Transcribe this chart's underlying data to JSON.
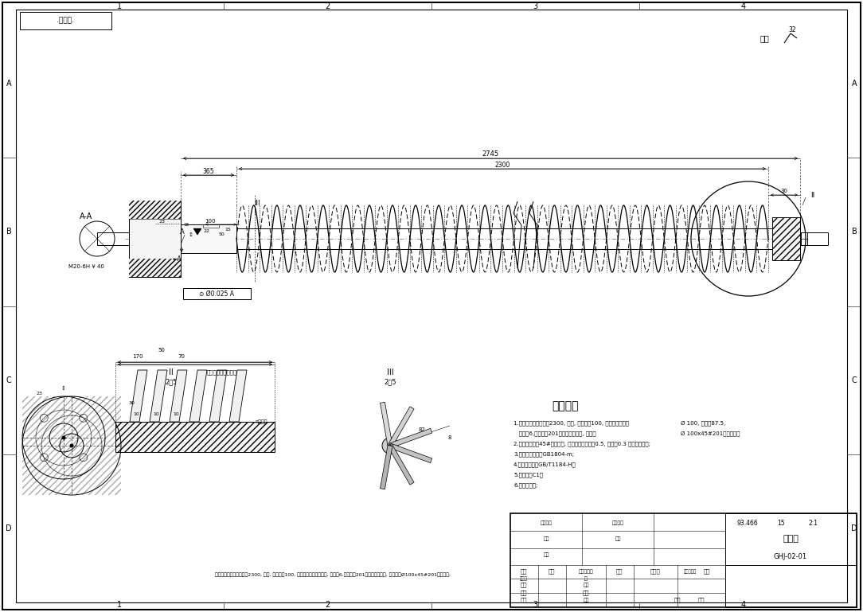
{
  "background_color": "#ffffff",
  "line_color": "#000000",
  "grid_col_labels": [
    "1",
    "2",
    "3",
    "4"
  ],
  "grid_row_labels": [
    "A",
    "B",
    "C",
    "D"
  ],
  "tech_requirements_title": "技术要求",
  "tech_req": [
    "1.螺旋叶片螺旋线长为2300, 右旋, 螺距等于100, 螺旋由螺旋线叠",
    "   层数为6,叶片使用201不锈钢板压成型, 并焊接",
    "2.不锈钢轴使用45#加工而来, 加工后不锈钢精度0.5, 右旋至0.3 工艺参照图纸;",
    "3.未注公差尺寸按GB1804-m;",
    "4.未注形位公差GB/T1184-H；",
    "5.未注倒角C1；",
    "6.所做去毛刺;"
  ],
  "tech_req_right": [
    "Ø 100, 叶片数87.5,",
    "Ø 100x45#201不锈钢上；",
    ""
  ],
  "top_note": ".草稿图.",
  "surface_text": "其余",
  "part_name": "螺旋轴",
  "drawing_number": "GHJ-02-01",
  "scale_val": "93.466",
  "sheet_num": "15",
  "scale_label": "2:1",
  "dim_2745": "2745",
  "dim_365": "365",
  "dim_2300": "2300",
  "dim_30": "30",
  "sec_ii": "II",
  "sec_iii": "III",
  "sec_ii_scale": "2：5",
  "sec_iii_scale": "2：5",
  "note_bottom": "螺旋叶片按螺旋线长度为2300, 右旋, 螺距等于100, 螺旋由螺旋线叠压而来, 层数为6,叶片使用201不锈钢板压成型, 并焊接于Ø100x45#201不锈钢上;"
}
